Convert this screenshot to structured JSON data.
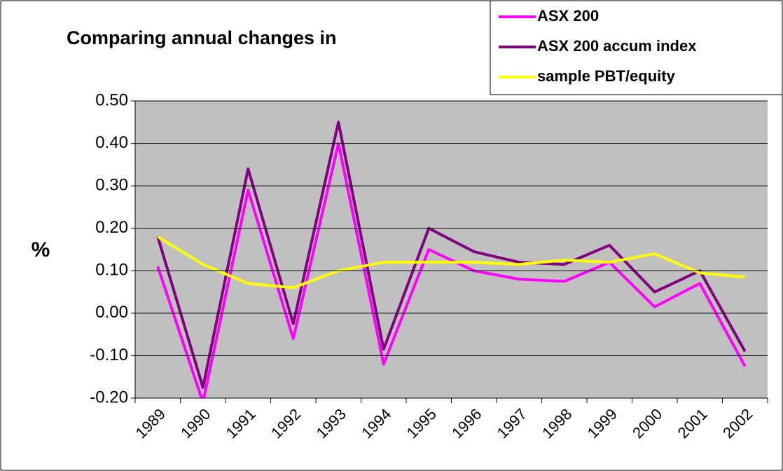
{
  "chart_data": {
    "type": "line",
    "title": "Comparing annual changes in",
    "y_label": "%",
    "categories": [
      "1989",
      "1990",
      "1991",
      "1992",
      "1993",
      "1994",
      "1995",
      "1996",
      "1997",
      "1998",
      "1999",
      "2000",
      "2001",
      "2002"
    ],
    "series": [
      {
        "name": "ASX 200",
        "color": "#ff00ff",
        "values": [
          0.11,
          -0.21,
          0.29,
          -0.06,
          0.4,
          -0.12,
          0.15,
          0.1,
          0.08,
          0.075,
          0.12,
          0.015,
          0.07,
          -0.125
        ]
      },
      {
        "name": "ASX 200 accum index",
        "color": "#800080",
        "values": [
          0.18,
          -0.175,
          0.34,
          -0.025,
          0.45,
          -0.085,
          0.2,
          0.145,
          0.12,
          0.115,
          0.16,
          0.05,
          0.1,
          -0.09
        ]
      },
      {
        "name": "sample PBT/equity",
        "color": "#ffff00",
        "values": [
          0.18,
          0.115,
          0.07,
          0.06,
          0.1,
          0.12,
          0.12,
          0.12,
          0.115,
          0.125,
          0.12,
          0.14,
          0.095,
          0.085
        ]
      }
    ],
    "ylim": [
      -0.2,
      0.5
    ],
    "yticks": [
      {
        "value": -0.2,
        "label": "-0.20"
      },
      {
        "value": -0.1,
        "label": "-0.10"
      },
      {
        "value": 0,
        "label": "0.00"
      },
      {
        "value": 0.1,
        "label": "0.10"
      },
      {
        "value": 0.2,
        "label": "0.20"
      },
      {
        "value": 0.3,
        "label": "0.30"
      },
      {
        "value": 0.4,
        "label": "0.40"
      },
      {
        "value": 0.5,
        "label": "0.50"
      }
    ],
    "grid": true,
    "plot_background": "#c0c0c0",
    "legend": "top-right"
  }
}
